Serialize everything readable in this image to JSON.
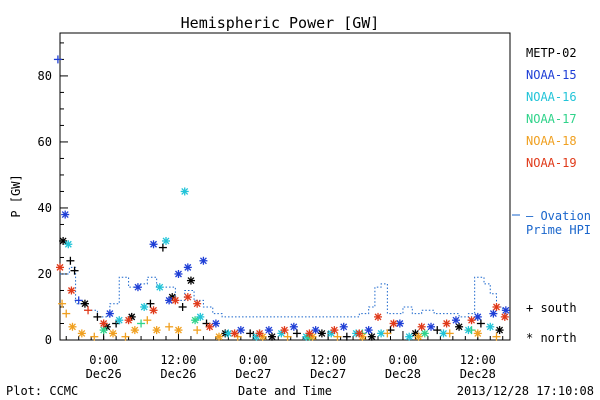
{
  "chart_data": {
    "type": "scatter",
    "title": "Hemispheric Power [GW]",
    "ylabel": "P [GW]",
    "xlabel": "Date and Time",
    "ylim": [
      0,
      93
    ],
    "yticks": [
      0,
      20,
      40,
      60,
      80
    ],
    "xlim_hours_note": "",
    "x_ticks": [
      {
        "t": "2013-12-26T00:00",
        "time": "0:00",
        "date": "Dec26"
      },
      {
        "t": "2013-12-26T12:00",
        "time": "12:00",
        "date": "Dec26"
      },
      {
        "t": "2013-12-27T00:00",
        "time": "0:00",
        "date": "Dec27"
      },
      {
        "t": "2013-12-27T12:00",
        "time": "12:00",
        "date": "Dec27"
      },
      {
        "t": "2013-12-28T00:00",
        "time": "0:00",
        "date": "Dec28"
      },
      {
        "t": "2013-12-28T12:00",
        "time": "12:00",
        "date": "Dec28"
      }
    ],
    "x_range": [
      "2013-12-25T17:00",
      "2013-12-28T17:10"
    ],
    "legend": [
      {
        "name": "METP-02",
        "color": "#000000"
      },
      {
        "name": "NOAA-15",
        "color": "#1f3fd6"
      },
      {
        "name": "NOAA-16",
        "color": "#22c4d8"
      },
      {
        "name": "NOAA-17",
        "color": "#2fd38a"
      },
      {
        "name": "NOAA-18",
        "color": "#f0a020"
      },
      {
        "name": "NOAA-19",
        "color": "#e03a1a"
      }
    ],
    "ovation_label": [
      "– Ovation",
      "Prime HPI"
    ],
    "ovation_color": "#1a66cc",
    "marker_key": [
      {
        "symbol": "+",
        "label": "south"
      },
      {
        "symbol": "*",
        "label": "north"
      }
    ],
    "ovation": [
      [
        "2013-12-25T17:00",
        20
      ],
      [
        "2013-12-25T18:30",
        22
      ],
      [
        "2013-12-25T19:30",
        11
      ],
      [
        "2013-12-25T21:00",
        9
      ],
      [
        "2013-12-25T23:00",
        7
      ],
      [
        "2013-12-26T01:00",
        11
      ],
      [
        "2013-12-26T02:30",
        19
      ],
      [
        "2013-12-26T04:00",
        16
      ],
      [
        "2013-12-26T05:30",
        17
      ],
      [
        "2013-12-26T07:00",
        19
      ],
      [
        "2013-12-26T08:30",
        16
      ],
      [
        "2013-12-26T10:00",
        16
      ],
      [
        "2013-12-26T11:30",
        12
      ],
      [
        "2013-12-26T13:00",
        15
      ],
      [
        "2013-12-26T14:30",
        12
      ],
      [
        "2013-12-26T16:00",
        10
      ],
      [
        "2013-12-26T17:30",
        8
      ],
      [
        "2013-12-26T19:00",
        7
      ],
      [
        "2013-12-26T22:00",
        7
      ],
      [
        "2013-12-27T02:00",
        7
      ],
      [
        "2013-12-27T06:00",
        7
      ],
      [
        "2013-12-27T10:00",
        7
      ],
      [
        "2013-12-27T14:00",
        7
      ],
      [
        "2013-12-27T17:00",
        8
      ],
      [
        "2013-12-27T18:30",
        10
      ],
      [
        "2013-12-27T19:30",
        16
      ],
      [
        "2013-12-27T20:30",
        17
      ],
      [
        "2013-12-27T21:30",
        8
      ],
      [
        "2013-12-27T23:00",
        8
      ],
      [
        "2013-12-28T00:00",
        10
      ],
      [
        "2013-12-28T01:30",
        8
      ],
      [
        "2013-12-28T03:00",
        9
      ],
      [
        "2013-12-28T05:00",
        8
      ],
      [
        "2013-12-28T07:00",
        8
      ],
      [
        "2013-12-28T09:00",
        7
      ],
      [
        "2013-12-28T10:30",
        8
      ],
      [
        "2013-12-28T11:30",
        19
      ],
      [
        "2013-12-28T13:00",
        17
      ],
      [
        "2013-12-28T14:00",
        14
      ],
      [
        "2013-12-28T15:00",
        10
      ],
      [
        "2013-12-28T16:00",
        9
      ],
      [
        "2013-12-28T17:00",
        9
      ]
    ],
    "series": [
      {
        "name": "METP-02",
        "color": "#000000",
        "points": [
          [
            "2013-12-25T17:30",
            30,
            "*"
          ],
          [
            "2013-12-25T18:40",
            24,
            "+"
          ],
          [
            "2013-12-25T19:20",
            21,
            "+"
          ],
          [
            "2013-12-25T21:00",
            11,
            "*"
          ],
          [
            "2013-12-25T23:00",
            7,
            "+"
          ],
          [
            "2013-12-26T00:30",
            4,
            "*"
          ],
          [
            "2013-12-26T02:00",
            5,
            "+"
          ],
          [
            "2013-12-26T04:30",
            7,
            "*"
          ],
          [
            "2013-12-26T07:30",
            11,
            "+"
          ],
          [
            "2013-12-26T09:30",
            28,
            "+"
          ],
          [
            "2013-12-26T11:00",
            13,
            "*"
          ],
          [
            "2013-12-26T12:40",
            10,
            "+"
          ],
          [
            "2013-12-26T14:00",
            18,
            "*"
          ],
          [
            "2013-12-26T16:30",
            5,
            "+"
          ],
          [
            "2013-12-26T19:30",
            2,
            "*"
          ],
          [
            "2013-12-26T23:30",
            2,
            "+"
          ],
          [
            "2013-12-27T03:00",
            1,
            "*"
          ],
          [
            "2013-12-27T07:00",
            2,
            "+"
          ],
          [
            "2013-12-27T11:00",
            2,
            "*"
          ],
          [
            "2013-12-27T15:00",
            1,
            "+"
          ],
          [
            "2013-12-27T19:00",
            1,
            "*"
          ],
          [
            "2013-12-27T22:00",
            3,
            "+"
          ],
          [
            "2013-12-28T02:00",
            2,
            "*"
          ],
          [
            "2013-12-28T05:30",
            3,
            "+"
          ],
          [
            "2013-12-28T09:00",
            4,
            "*"
          ],
          [
            "2013-12-28T12:30",
            5,
            "+"
          ],
          [
            "2013-12-28T15:30",
            3,
            "*"
          ]
        ]
      },
      {
        "name": "NOAA-15",
        "color": "#1f3fd6",
        "points": [
          [
            "2013-12-25T16:40",
            85,
            "+"
          ],
          [
            "2013-12-25T17:50",
            38,
            "*"
          ],
          [
            "2013-12-25T20:00",
            12,
            "+"
          ],
          [
            "2013-12-26T01:00",
            8,
            "*"
          ],
          [
            "2013-12-26T05:30",
            16,
            "*"
          ],
          [
            "2013-12-26T08:00",
            29,
            "*"
          ],
          [
            "2013-12-26T10:30",
            12,
            "*"
          ],
          [
            "2013-12-26T12:00",
            20,
            "*"
          ],
          [
            "2013-12-26T13:30",
            22,
            "*"
          ],
          [
            "2013-12-26T16:00",
            24,
            "*"
          ],
          [
            "2013-12-26T18:00",
            5,
            "*"
          ],
          [
            "2013-12-26T22:00",
            3,
            "*"
          ],
          [
            "2013-12-27T02:30",
            3,
            "*"
          ],
          [
            "2013-12-27T06:30",
            4,
            "*"
          ],
          [
            "2013-12-27T10:00",
            3,
            "*"
          ],
          [
            "2013-12-27T14:30",
            4,
            "*"
          ],
          [
            "2013-12-27T18:30",
            3,
            "*"
          ],
          [
            "2013-12-27T23:30",
            5,
            "*"
          ],
          [
            "2013-12-28T04:30",
            4,
            "*"
          ],
          [
            "2013-12-28T08:30",
            6,
            "*"
          ],
          [
            "2013-12-28T12:00",
            7,
            "*"
          ],
          [
            "2013-12-28T14:30",
            8,
            "*"
          ],
          [
            "2013-12-28T16:30",
            9,
            "*"
          ]
        ]
      },
      {
        "name": "NOAA-16",
        "color": "#22c4d8",
        "points": [
          [
            "2013-12-25T18:20",
            29,
            "*"
          ],
          [
            "2013-12-26T02:30",
            6,
            "*"
          ],
          [
            "2013-12-26T06:30",
            10,
            "*"
          ],
          [
            "2013-12-26T09:00",
            16,
            "*"
          ],
          [
            "2013-12-26T10:00",
            30,
            "*"
          ],
          [
            "2013-12-26T13:00",
            45,
            "*"
          ],
          [
            "2013-12-26T15:30",
            7,
            "*"
          ],
          [
            "2013-12-26T20:00",
            2,
            "*"
          ],
          [
            "2013-12-27T00:30",
            1,
            "*"
          ],
          [
            "2013-12-27T04:30",
            2,
            "*"
          ],
          [
            "2013-12-27T08:30",
            1,
            "*"
          ],
          [
            "2013-12-27T12:30",
            2,
            "*"
          ],
          [
            "2013-12-27T16:30",
            2,
            "*"
          ],
          [
            "2013-12-27T20:30",
            2,
            "*"
          ],
          [
            "2013-12-28T01:00",
            1,
            "*"
          ],
          [
            "2013-12-28T06:30",
            2,
            "*"
          ],
          [
            "2013-12-28T10:30",
            3,
            "*"
          ],
          [
            "2013-12-28T14:00",
            4,
            "*"
          ]
        ]
      },
      {
        "name": "NOAA-17",
        "color": "#2fd38a",
        "points": [
          [
            "2013-12-26T00:00",
            3,
            "*"
          ],
          [
            "2013-12-26T06:00",
            5,
            "+"
          ],
          [
            "2013-12-26T14:40",
            6,
            "*"
          ],
          [
            "2013-12-27T01:00",
            2,
            "+"
          ],
          [
            "2013-12-27T09:00",
            1,
            "*"
          ],
          [
            "2013-12-27T17:30",
            2,
            "+"
          ],
          [
            "2013-12-28T03:30",
            2,
            "*"
          ],
          [
            "2013-12-28T11:00",
            3,
            "+"
          ]
        ]
      },
      {
        "name": "NOAA-18",
        "color": "#f0a020",
        "points": [
          [
            "2013-12-25T17:20",
            11,
            "+"
          ],
          [
            "2013-12-25T18:00",
            8,
            "+"
          ],
          [
            "2013-12-25T19:00",
            4,
            "*"
          ],
          [
            "2013-12-25T20:30",
            2,
            "*"
          ],
          [
            "2013-12-25T22:30",
            1,
            "+"
          ],
          [
            "2013-12-26T01:30",
            2,
            "*"
          ],
          [
            "2013-12-26T03:30",
            1,
            "+"
          ],
          [
            "2013-12-26T05:00",
            3,
            "*"
          ],
          [
            "2013-12-26T07:00",
            6,
            "+"
          ],
          [
            "2013-12-26T08:30",
            3,
            "*"
          ],
          [
            "2013-12-26T10:30",
            4,
            "+"
          ],
          [
            "2013-12-26T12:00",
            3,
            "*"
          ],
          [
            "2013-12-26T15:00",
            3,
            "+"
          ],
          [
            "2013-12-26T18:30",
            1,
            "*"
          ],
          [
            "2013-12-26T21:30",
            1,
            "+"
          ],
          [
            "2013-12-27T01:30",
            1,
            "*"
          ],
          [
            "2013-12-27T05:30",
            1,
            "+"
          ],
          [
            "2013-12-27T09:30",
            1,
            "*"
          ],
          [
            "2013-12-27T13:30",
            1,
            "+"
          ],
          [
            "2013-12-27T17:30",
            1,
            "*"
          ],
          [
            "2013-12-27T21:30",
            2,
            "+"
          ],
          [
            "2013-12-28T02:30",
            1,
            "*"
          ],
          [
            "2013-12-28T07:30",
            2,
            "+"
          ],
          [
            "2013-12-28T12:00",
            2,
            "*"
          ],
          [
            "2013-12-28T15:00",
            1,
            "+"
          ]
        ]
      },
      {
        "name": "NOAA-19",
        "color": "#e03a1a",
        "points": [
          [
            "2013-12-25T17:00",
            22,
            "*"
          ],
          [
            "2013-12-25T18:50",
            15,
            "*"
          ],
          [
            "2013-12-25T21:30",
            9,
            "+"
          ],
          [
            "2013-12-26T00:00",
            5,
            "*"
          ],
          [
            "2013-12-26T04:00",
            6,
            "*"
          ],
          [
            "2013-12-26T08:00",
            9,
            "*"
          ],
          [
            "2013-12-26T11:30",
            12,
            "*"
          ],
          [
            "2013-12-26T13:30",
            13,
            "*"
          ],
          [
            "2013-12-26T15:00",
            11,
            "*"
          ],
          [
            "2013-12-26T17:00",
            4,
            "*"
          ],
          [
            "2013-12-26T21:00",
            2,
            "*"
          ],
          [
            "2013-12-27T01:00",
            2,
            "*"
          ],
          [
            "2013-12-27T05:00",
            3,
            "*"
          ],
          [
            "2013-12-27T09:00",
            2,
            "*"
          ],
          [
            "2013-12-27T13:00",
            3,
            "*"
          ],
          [
            "2013-12-27T17:00",
            2,
            "*"
          ],
          [
            "2013-12-27T20:00",
            7,
            "*"
          ],
          [
            "2013-12-27T22:30",
            5,
            "*"
          ],
          [
            "2013-12-28T03:00",
            4,
            "*"
          ],
          [
            "2013-12-28T07:00",
            5,
            "*"
          ],
          [
            "2013-12-28T11:00",
            6,
            "*"
          ],
          [
            "2013-12-28T15:00",
            10,
            "*"
          ],
          [
            "2013-12-28T16:20",
            7,
            "*"
          ]
        ]
      }
    ],
    "footer_left": "Plot: CCMC",
    "footer_right": "2013/12/28 17:10:08"
  }
}
